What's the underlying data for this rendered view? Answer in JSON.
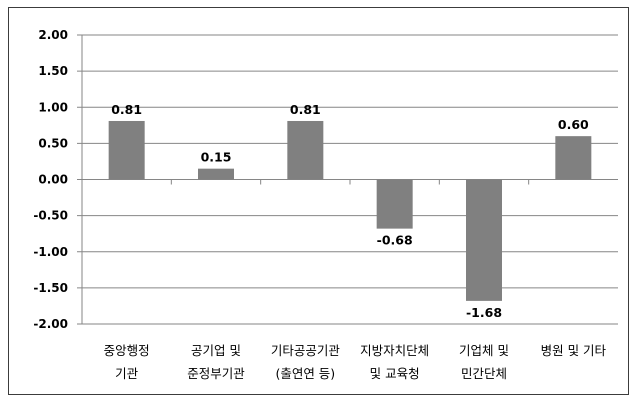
{
  "chart_data": {
    "type": "bar",
    "categories": [
      [
        "중앙행정",
        "기관"
      ],
      [
        "공기업 및",
        "준정부기관"
      ],
      [
        "기타공공기관",
        "(출연연 등)"
      ],
      [
        "지방자치단체",
        "및 교육청"
      ],
      [
        "기업체 및",
        "민간단체"
      ],
      [
        "병원 및 기타"
      ]
    ],
    "values": [
      0.81,
      0.15,
      0.81,
      -0.68,
      -1.68,
      0.6
    ],
    "data_labels": [
      "0.81",
      "0.15",
      "0.81",
      "-0.68",
      "-1.68",
      "0.60"
    ],
    "ylim": [
      -2.0,
      2.0
    ],
    "yticks": [
      2.0,
      1.5,
      1.0,
      0.5,
      0.0,
      -0.5,
      -1.0,
      -1.5,
      -2.0
    ],
    "ytick_labels": [
      "2.00",
      "1.50",
      "1.00",
      "0.50",
      "0.00",
      "-0.50",
      "-1.00",
      "-1.50",
      "-2.00"
    ],
    "grid": true,
    "legend": "none",
    "bar_color": "#808080",
    "grid_color": "#868686"
  }
}
